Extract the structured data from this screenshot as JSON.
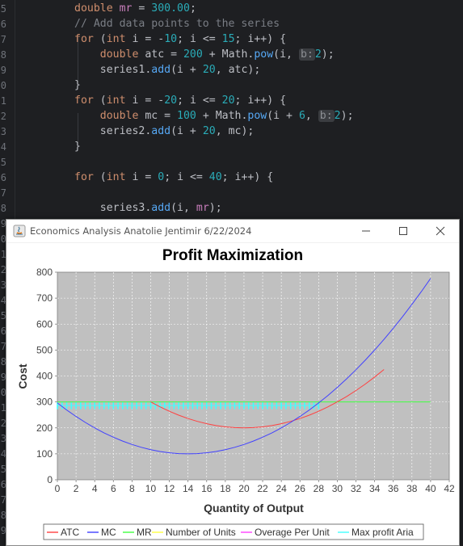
{
  "editor": {
    "line_numbers": [
      "5",
      "6",
      "7",
      "8",
      "9",
      "0",
      "1",
      "2",
      "3",
      "4",
      "5",
      "6",
      "7",
      "8",
      "9",
      "0",
      "1",
      "2",
      "3",
      "4",
      "5",
      "6",
      "7",
      "8",
      "9",
      "0",
      "1",
      "2",
      "3",
      "4",
      "5",
      "6",
      "7",
      "8",
      "9"
    ],
    "lines": [
      {
        "segments": [
          {
            "c": "kw",
            "t": "double "
          },
          {
            "c": "var",
            "t": "mr"
          },
          {
            "c": "",
            "t": " = "
          },
          {
            "c": "num",
            "t": "300.00"
          },
          {
            "c": "",
            "t": ";"
          }
        ]
      },
      {
        "segments": [
          {
            "c": "cm",
            "t": "// Add data points to the series"
          }
        ]
      },
      {
        "segments": [
          {
            "c": "kw",
            "t": "for "
          },
          {
            "c": "",
            "t": "("
          },
          {
            "c": "kw",
            "t": "int "
          },
          {
            "c": "",
            "t": "i = -"
          },
          {
            "c": "num",
            "t": "10"
          },
          {
            "c": "",
            "t": "; i <= "
          },
          {
            "c": "num",
            "t": "15"
          },
          {
            "c": "",
            "t": "; i++) {"
          }
        ]
      },
      {
        "segments": [
          {
            "c": "kw",
            "t": "    double "
          },
          {
            "c": "",
            "t": "atc = "
          },
          {
            "c": "num",
            "t": "200"
          },
          {
            "c": "",
            "t": " + Math."
          },
          {
            "c": "fn",
            "t": "pow"
          },
          {
            "c": "",
            "t": "(i, "
          },
          {
            "c": "hint",
            "t": "b:"
          },
          {
            "c": "num",
            "t": "2"
          },
          {
            "c": "",
            "t": ");"
          }
        ]
      },
      {
        "segments": [
          {
            "c": "",
            "t": "    series1."
          },
          {
            "c": "fn",
            "t": "add"
          },
          {
            "c": "",
            "t": "(i + "
          },
          {
            "c": "num",
            "t": "20"
          },
          {
            "c": "",
            "t": ", atc);"
          }
        ]
      },
      {
        "segments": [
          {
            "c": "",
            "t": "}"
          }
        ]
      },
      {
        "segments": [
          {
            "c": "kw",
            "t": "for "
          },
          {
            "c": "",
            "t": "("
          },
          {
            "c": "kw",
            "t": "int "
          },
          {
            "c": "",
            "t": "i = -"
          },
          {
            "c": "num",
            "t": "20"
          },
          {
            "c": "",
            "t": "; i <= "
          },
          {
            "c": "num",
            "t": "20"
          },
          {
            "c": "",
            "t": "; i++) {"
          }
        ]
      },
      {
        "segments": [
          {
            "c": "kw",
            "t": "    double "
          },
          {
            "c": "",
            "t": "mc = "
          },
          {
            "c": "num",
            "t": "100"
          },
          {
            "c": "",
            "t": " + Math."
          },
          {
            "c": "fn",
            "t": "pow"
          },
          {
            "c": "",
            "t": "(i + "
          },
          {
            "c": "num",
            "t": "6"
          },
          {
            "c": "",
            "t": ", "
          },
          {
            "c": "hint",
            "t": "b:"
          },
          {
            "c": "num",
            "t": "2"
          },
          {
            "c": "",
            "t": ");"
          }
        ]
      },
      {
        "segments": [
          {
            "c": "",
            "t": "    series2."
          },
          {
            "c": "fn",
            "t": "add"
          },
          {
            "c": "",
            "t": "(i + "
          },
          {
            "c": "num",
            "t": "20"
          },
          {
            "c": "",
            "t": ", mc);"
          }
        ]
      },
      {
        "segments": [
          {
            "c": "",
            "t": "}"
          }
        ]
      },
      {
        "segments": [
          {
            "c": "",
            "t": ""
          }
        ]
      },
      {
        "segments": [
          {
            "c": "kw",
            "t": "for "
          },
          {
            "c": "",
            "t": "("
          },
          {
            "c": "kw",
            "t": "int "
          },
          {
            "c": "",
            "t": "i = "
          },
          {
            "c": "num",
            "t": "0"
          },
          {
            "c": "",
            "t": "; i <= "
          },
          {
            "c": "num",
            "t": "40"
          },
          {
            "c": "",
            "t": "; i++) {"
          }
        ]
      },
      {
        "segments": [
          {
            "c": "",
            "t": ""
          }
        ]
      },
      {
        "segments": [
          {
            "c": "",
            "t": "    series3."
          },
          {
            "c": "fn",
            "t": "add"
          },
          {
            "c": "",
            "t": "(i, "
          },
          {
            "c": "var",
            "t": "mr"
          },
          {
            "c": "",
            "t": ");"
          }
        ]
      }
    ]
  },
  "window": {
    "title": "Economics Analysis Anatolie Jentimir 6/22/2024",
    "buttons": [
      "minimize-button",
      "maximize-button",
      "close-button"
    ]
  },
  "chart_data": {
    "type": "line",
    "title": "Profit Maximization",
    "xlabel": "Quantity of Output",
    "ylabel": "Cost",
    "xlim": [
      0,
      42
    ],
    "ylim": [
      0,
      800
    ],
    "x_ticks": [
      "0",
      "2",
      "4",
      "6",
      "8",
      "10",
      "12",
      "14",
      "16",
      "18",
      "20",
      "22",
      "24",
      "26",
      "28",
      "30",
      "32",
      "34",
      "36",
      "38",
      "40",
      "42"
    ],
    "y_ticks": [
      "0",
      "100",
      "200",
      "300",
      "400",
      "500",
      "600",
      "700",
      "800"
    ],
    "grid": true,
    "legend_position": "bottom",
    "background": "#c0c0c0",
    "series": [
      {
        "name": "ATC",
        "color": "#ff4040",
        "formula": "200 + (x-20)^2",
        "x_range": [
          10,
          35
        ]
      },
      {
        "name": "MC",
        "color": "#4040ff",
        "formula": "100 + (x-14)^2",
        "x_range": [
          0,
          40
        ]
      },
      {
        "name": "MR",
        "color": "#40ff40",
        "formula": "300",
        "x_range": [
          0,
          40
        ]
      },
      {
        "name": "Number of Units",
        "color": "#ffff40",
        "formula": "",
        "x_range": []
      },
      {
        "name": "Overage Per Unit",
        "color": "#ff40ff",
        "formula": "",
        "x_range": []
      },
      {
        "name": "Max profit Aria",
        "color": "#40ffff",
        "formula": "hatched band 272-300",
        "x_range": [
          0,
          28
        ]
      }
    ]
  }
}
